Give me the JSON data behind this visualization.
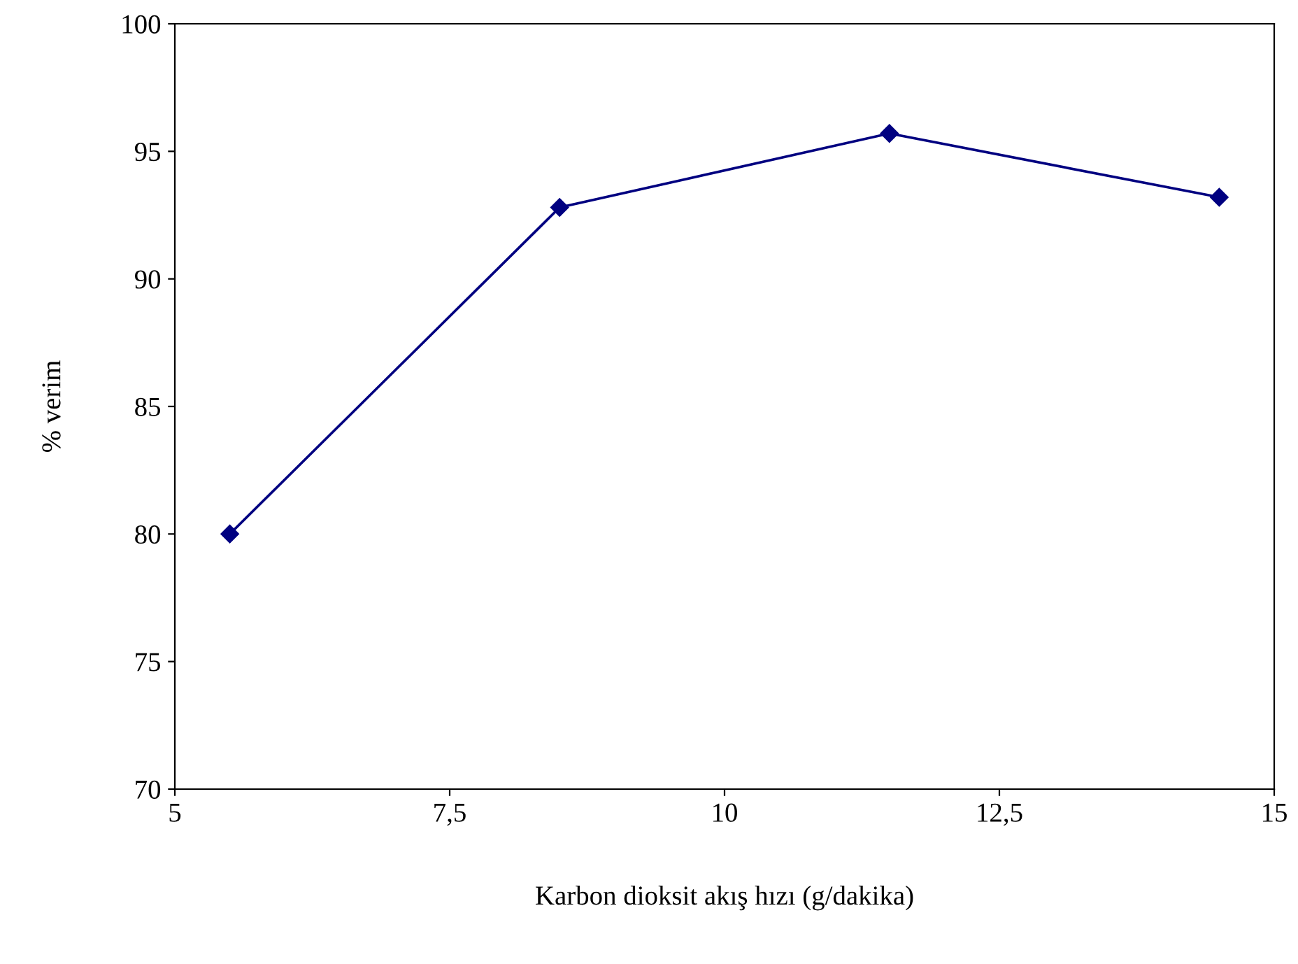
{
  "chart_data": {
    "type": "line",
    "xlabel": "Karbon dioksit akış hızı (g/dakika)",
    "ylabel": "% verim",
    "x": [
      5.5,
      8.5,
      11.5,
      14.5
    ],
    "series": [
      {
        "color": "#000080",
        "values": [
          80.0,
          92.8,
          95.7,
          93.2
        ]
      }
    ],
    "xlim": [
      5,
      15
    ],
    "xticks": [
      5,
      {
        "value": 7.5,
        "label": "7,5"
      },
      10,
      {
        "value": 12.5,
        "label": "12,5"
      },
      15
    ],
    "ylim": [
      70,
      100
    ],
    "yticks": [
      70,
      75,
      80,
      85,
      90,
      95,
      100
    ],
    "grid": false,
    "legend": false,
    "marker": "diamond",
    "line_style": "solid"
  }
}
